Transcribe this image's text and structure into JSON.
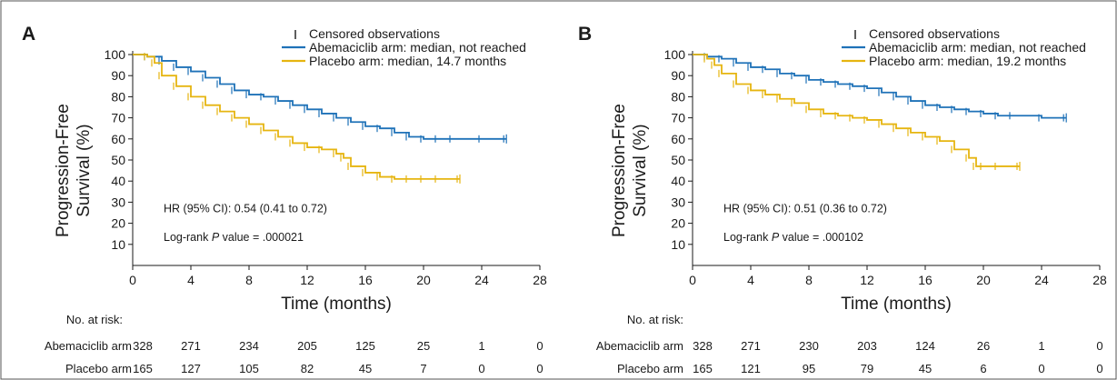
{
  "colors": {
    "abemaciclib": "#1f72b8",
    "placebo": "#e6b510",
    "axis": "#1a1a1a",
    "frame": "#555555"
  },
  "chart_data": [
    {
      "type": "line",
      "panel_label": "A",
      "xlabel": "Time (months)",
      "ylabel": [
        "Progression-Free",
        "Survival (%)"
      ],
      "x_ticks": [
        0,
        4,
        8,
        12,
        16,
        20,
        24,
        28
      ],
      "y_ticks": [
        10,
        20,
        30,
        40,
        50,
        60,
        70,
        80,
        90,
        100
      ],
      "xlim": [
        0,
        28
      ],
      "ylim": [
        0,
        100
      ],
      "legend": {
        "censor_marker": "|",
        "censor_label": "Censored observations",
        "series_labels": [
          "Abemaciclib arm: median, not reached",
          "Placebo arm: median, 14.7 months"
        ]
      },
      "annotations": {
        "hr": "HR (95% CI): 0.54 (0.41 to 0.72)",
        "logrank_prefix": "Log-rank ",
        "logrank_italic": "P",
        "logrank_suffix": " value = .000021"
      },
      "series": [
        {
          "name": "Abemaciclib arm",
          "color": "#1f72b8",
          "points": [
            [
              0,
              100
            ],
            [
              1,
              99
            ],
            [
              2,
              97
            ],
            [
              3,
              94
            ],
            [
              4,
              92
            ],
            [
              5,
              89
            ],
            [
              6,
              86
            ],
            [
              7,
              83
            ],
            [
              8,
              81
            ],
            [
              9,
              80
            ],
            [
              10,
              78
            ],
            [
              11,
              76
            ],
            [
              12,
              74
            ],
            [
              13,
              72
            ],
            [
              14,
              70
            ],
            [
              15,
              68
            ],
            [
              16,
              66
            ],
            [
              17,
              65
            ],
            [
              18,
              63
            ],
            [
              19,
              61
            ],
            [
              20,
              60
            ],
            [
              21,
              60
            ],
            [
              22,
              60
            ],
            [
              24,
              60
            ],
            [
              25.7,
              60
            ]
          ]
        },
        {
          "name": "Placebo arm",
          "color": "#e6b510",
          "points": [
            [
              0,
              100
            ],
            [
              1,
              99
            ],
            [
              1.5,
              96
            ],
            [
              2,
              90
            ],
            [
              3,
              85
            ],
            [
              4,
              80
            ],
            [
              5,
              76
            ],
            [
              6,
              73
            ],
            [
              7,
              70
            ],
            [
              8,
              67
            ],
            [
              9,
              64
            ],
            [
              10,
              61
            ],
            [
              11,
              58
            ],
            [
              12,
              56
            ],
            [
              13,
              55
            ],
            [
              14,
              53
            ],
            [
              14.5,
              51
            ],
            [
              15,
              47
            ],
            [
              16,
              44
            ],
            [
              17,
              42
            ],
            [
              18,
              41
            ],
            [
              19,
              41
            ],
            [
              20,
              41
            ],
            [
              21,
              41
            ],
            [
              22.5,
              41
            ]
          ]
        }
      ],
      "at_risk": {
        "header": "No. at risk:",
        "rows": [
          {
            "label": "Abemaciclib arm",
            "values": [
              "328",
              "271",
              "234",
              "205",
              "125",
              "25",
              "1",
              "0"
            ]
          },
          {
            "label": "Placebo arm",
            "values": [
              "165",
              "127",
              "105",
              "82",
              "45",
              "7",
              "0",
              "0"
            ]
          }
        ]
      }
    },
    {
      "type": "line",
      "panel_label": "B",
      "xlabel": "Time (months)",
      "ylabel": [
        "Progression-Free",
        "Survival (%)"
      ],
      "x_ticks": [
        0,
        4,
        8,
        12,
        16,
        20,
        24,
        28
      ],
      "y_ticks": [
        10,
        20,
        30,
        40,
        50,
        60,
        70,
        80,
        90,
        100
      ],
      "xlim": [
        0,
        28
      ],
      "ylim": [
        0,
        100
      ],
      "legend": {
        "censor_marker": "|",
        "censor_label": "Censored observations",
        "series_labels": [
          "Abemaciclib arm: median, not reached",
          "Placebo arm: median, 19.2 months"
        ]
      },
      "annotations": {
        "hr": "HR (95% CI): 0.51 (0.36 to 0.72)",
        "logrank_prefix": "Log-rank ",
        "logrank_italic": "P",
        "logrank_suffix": " value = .000102"
      },
      "series": [
        {
          "name": "Abemaciclib arm",
          "color": "#1f72b8",
          "points": [
            [
              0,
              100
            ],
            [
              1,
              99
            ],
            [
              2,
              98
            ],
            [
              3,
              96
            ],
            [
              4,
              94
            ],
            [
              5,
              93
            ],
            [
              6,
              91
            ],
            [
              7,
              90
            ],
            [
              8,
              88
            ],
            [
              9,
              87
            ],
            [
              10,
              86
            ],
            [
              11,
              85
            ],
            [
              12,
              84
            ],
            [
              13,
              82
            ],
            [
              14,
              80
            ],
            [
              15,
              78
            ],
            [
              16,
              76
            ],
            [
              17,
              75
            ],
            [
              18,
              74
            ],
            [
              19,
              73
            ],
            [
              20,
              72
            ],
            [
              21,
              71
            ],
            [
              22,
              71
            ],
            [
              24,
              70
            ],
            [
              25.7,
              70
            ]
          ]
        },
        {
          "name": "Placebo arm",
          "color": "#e6b510",
          "points": [
            [
              0,
              100
            ],
            [
              1,
              98
            ],
            [
              1.5,
              95
            ],
            [
              2,
              91
            ],
            [
              3,
              86
            ],
            [
              4,
              83
            ],
            [
              5,
              81
            ],
            [
              6,
              79
            ],
            [
              7,
              77
            ],
            [
              8,
              74
            ],
            [
              9,
              72
            ],
            [
              10,
              71
            ],
            [
              11,
              70
            ],
            [
              12,
              69
            ],
            [
              13,
              67
            ],
            [
              14,
              65
            ],
            [
              15,
              63
            ],
            [
              16,
              61
            ],
            [
              17,
              59
            ],
            [
              18,
              55
            ],
            [
              19,
              51
            ],
            [
              19.5,
              47
            ],
            [
              20,
              47
            ],
            [
              21,
              47
            ],
            [
              22.5,
              47
            ]
          ]
        }
      ],
      "at_risk": {
        "header": "No. at risk:",
        "rows": [
          {
            "label": "Abemaciclib arm",
            "values": [
              "328",
              "271",
              "230",
              "203",
              "124",
              "26",
              "1",
              "0"
            ]
          },
          {
            "label": "Placebo arm",
            "values": [
              "165",
              "121",
              "95",
              "79",
              "45",
              "6",
              "0",
              "0"
            ]
          }
        ]
      }
    }
  ]
}
